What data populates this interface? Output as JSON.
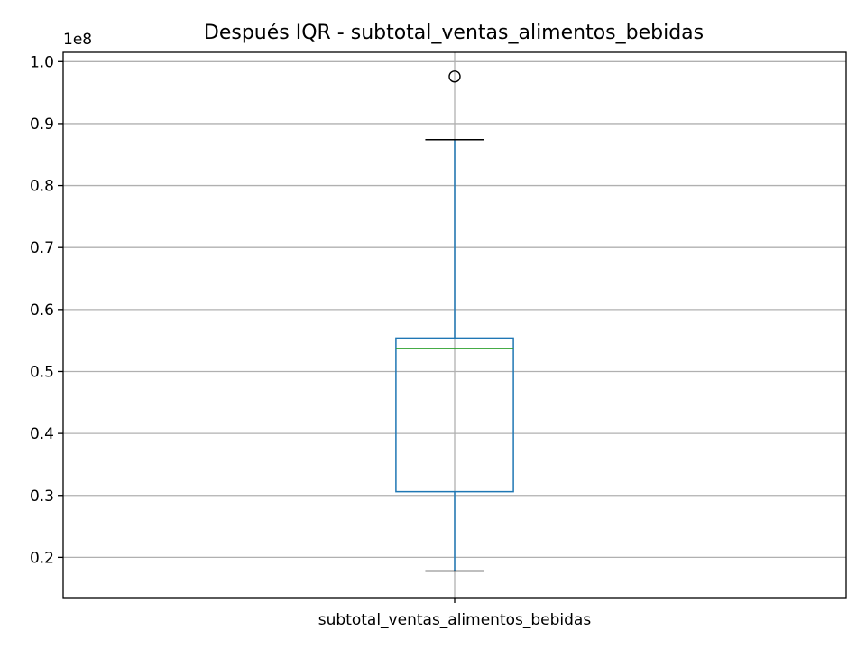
{
  "chart_data": {
    "type": "box",
    "title": "Después IQR - subtotal_ventas_alimentos_bebidas",
    "xlabel": "",
    "ylabel": "",
    "y_offset_label": "1e8",
    "y_scale": 100000000,
    "ylim": [
      0.135,
      1.015
    ],
    "yticks": [
      0.2,
      0.3,
      0.4,
      0.5,
      0.6,
      0.7,
      0.8,
      0.9,
      1.0
    ],
    "ytick_labels": [
      "0.2",
      "0.3",
      "0.4",
      "0.5",
      "0.6",
      "0.7",
      "0.8",
      "0.9",
      "1.0"
    ],
    "grid": true,
    "categories": [
      "subtotal_ventas_alimentos_bebidas"
    ],
    "boxes": [
      {
        "name": "subtotal_ventas_alimentos_bebidas",
        "whisker_low": 0.178,
        "q1": 0.306,
        "median": 0.537,
        "q3": 0.554,
        "whisker_high": 0.874,
        "outliers": [
          0.976
        ]
      }
    ],
    "colors": {
      "box": "#1f77b4",
      "median": "#2ca02c",
      "whisker_cap": "#000000",
      "grid": "#b0b0b0",
      "axes": "#000000"
    }
  }
}
